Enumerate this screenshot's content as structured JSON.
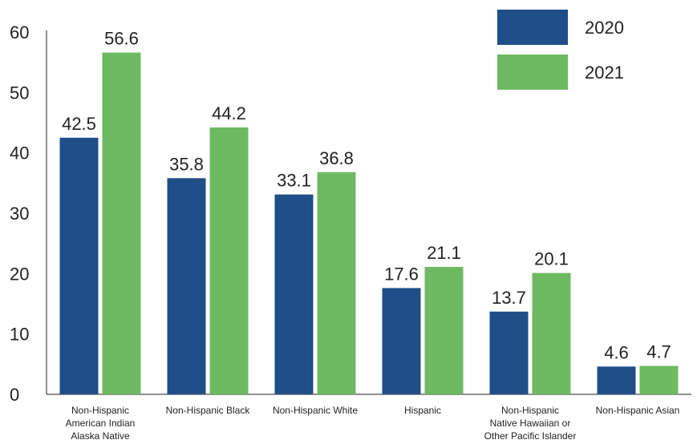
{
  "chart_data": {
    "type": "bar",
    "categories": [
      [
        "Non-Hispanic",
        "American Indian",
        "Alaska Native"
      ],
      [
        "Non-Hispanic Black"
      ],
      [
        "Non-Hispanic White"
      ],
      [
        "Hispanic"
      ],
      [
        "Non-Hispanic",
        "Native Hawaiian or",
        "Other Pacific Islander"
      ],
      [
        "Non-Hispanic Asian"
      ]
    ],
    "series": [
      {
        "name": "2020",
        "color": "#1f4e88",
        "values": [
          42.5,
          35.8,
          33.1,
          17.6,
          13.7,
          4.6
        ],
        "labels": [
          "42.5",
          "35.8",
          "33.1",
          "17.6",
          "13.7",
          "4.6"
        ]
      },
      {
        "name": "2021",
        "color": "#6dba62",
        "values": [
          56.6,
          44.2,
          36.8,
          21.1,
          20.1,
          4.7
        ],
        "labels": [
          "56.6",
          "44.2",
          "36.8",
          "21.1",
          "20.1",
          "4.7"
        ]
      }
    ],
    "yticks": [
      "0",
      "10",
      "20",
      "30",
      "40",
      "50",
      "60"
    ],
    "ylim": [
      0,
      60
    ],
    "grid": false,
    "legend_position": "top-right"
  }
}
